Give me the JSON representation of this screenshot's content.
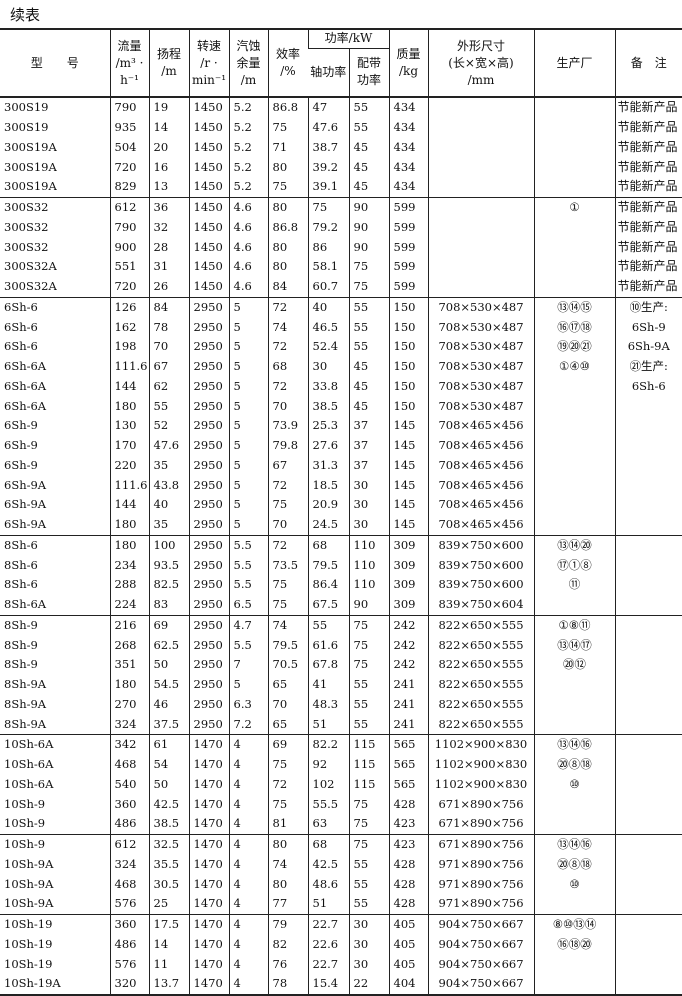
{
  "title": "续表",
  "header": {
    "model": "型　　号",
    "flow": [
      "流量",
      "/m³ ·",
      "h⁻¹"
    ],
    "head": [
      "扬程",
      "/m"
    ],
    "speed": [
      "转速",
      "/r ·",
      "min⁻¹"
    ],
    "npsh": [
      "汽蚀",
      "余量",
      "/m"
    ],
    "eff": [
      "效率",
      "/%"
    ],
    "power": "功率/kW",
    "shaft": "轴功率",
    "motor": [
      "配带",
      "功率"
    ],
    "mass": [
      "质量",
      "/kg"
    ],
    "dims": [
      "外形尺寸",
      "(长×宽×高)",
      "/mm"
    ],
    "factory": "生产厂",
    "remark": "备　注"
  },
  "rows": [
    [
      "300S19",
      "790",
      "19",
      "1450",
      "5.2",
      "86.8",
      "47",
      "55",
      "434",
      "",
      "",
      "节能新产品"
    ],
    [
      "300S19",
      "935",
      "14",
      "1450",
      "5.2",
      "75",
      "47.6",
      "55",
      "434",
      "",
      "",
      "节能新产品"
    ],
    [
      "300S19A",
      "504",
      "20",
      "1450",
      "5.2",
      "71",
      "38.7",
      "45",
      "434",
      "",
      "",
      "节能新产品"
    ],
    [
      "300S19A",
      "720",
      "16",
      "1450",
      "5.2",
      "80",
      "39.2",
      "45",
      "434",
      "",
      "",
      "节能新产品"
    ],
    [
      "300S19A",
      "829",
      "13",
      "1450",
      "5.2",
      "75",
      "39.1",
      "45",
      "434",
      "",
      "",
      "节能新产品"
    ],
    [
      "300S32",
      "612",
      "36",
      "1450",
      "4.6",
      "80",
      "75",
      "90",
      "599",
      "",
      "①",
      "节能新产品"
    ],
    [
      "300S32",
      "790",
      "32",
      "1450",
      "4.6",
      "86.8",
      "79.2",
      "90",
      "599",
      "",
      "",
      "节能新产品"
    ],
    [
      "300S32",
      "900",
      "28",
      "1450",
      "4.6",
      "80",
      "86",
      "90",
      "599",
      "",
      "",
      "节能新产品"
    ],
    [
      "300S32A",
      "551",
      "31",
      "1450",
      "4.6",
      "80",
      "58.1",
      "75",
      "599",
      "",
      "",
      "节能新产品"
    ],
    [
      "300S32A",
      "720",
      "26",
      "1450",
      "4.6",
      "84",
      "60.7",
      "75",
      "599",
      "",
      "",
      "节能新产品"
    ],
    [
      "6Sh-6",
      "126",
      "84",
      "2950",
      "5",
      "72",
      "40",
      "55",
      "150",
      "708×530×487",
      "⑬⑭⑮",
      "⑩生产:"
    ],
    [
      "6Sh-6",
      "162",
      "78",
      "2950",
      "5",
      "74",
      "46.5",
      "55",
      "150",
      "708×530×487",
      "⑯⑰⑱",
      "6Sh-9"
    ],
    [
      "6Sh-6",
      "198",
      "70",
      "2950",
      "5",
      "72",
      "52.4",
      "55",
      "150",
      "708×530×487",
      "⑲⑳㉑",
      "6Sh-9A"
    ],
    [
      "6Sh-6A",
      "111.6",
      "67",
      "2950",
      "5",
      "68",
      "30",
      "45",
      "150",
      "708×530×487",
      "①④⑩",
      "㉑生产:"
    ],
    [
      "6Sh-6A",
      "144",
      "62",
      "2950",
      "5",
      "72",
      "33.8",
      "45",
      "150",
      "708×530×487",
      "",
      "6Sh-6"
    ],
    [
      "6Sh-6A",
      "180",
      "55",
      "2950",
      "5",
      "70",
      "38.5",
      "45",
      "150",
      "708×530×487",
      "",
      ""
    ],
    [
      "6Sh-9",
      "130",
      "52",
      "2950",
      "5",
      "73.9",
      "25.3",
      "37",
      "145",
      "708×465×456",
      "",
      ""
    ],
    [
      "6Sh-9",
      "170",
      "47.6",
      "2950",
      "5",
      "79.8",
      "27.6",
      "37",
      "145",
      "708×465×456",
      "",
      ""
    ],
    [
      "6Sh-9",
      "220",
      "35",
      "2950",
      "5",
      "67",
      "31.3",
      "37",
      "145",
      "708×465×456",
      "",
      ""
    ],
    [
      "6Sh-9A",
      "111.6",
      "43.8",
      "2950",
      "5",
      "72",
      "18.5",
      "30",
      "145",
      "708×465×456",
      "",
      ""
    ],
    [
      "6Sh-9A",
      "144",
      "40",
      "2950",
      "5",
      "75",
      "20.9",
      "30",
      "145",
      "708×465×456",
      "",
      ""
    ],
    [
      "6Sh-9A",
      "180",
      "35",
      "2950",
      "5",
      "70",
      "24.5",
      "30",
      "145",
      "708×465×456",
      "",
      ""
    ],
    [
      "8Sh-6",
      "180",
      "100",
      "2950",
      "5.5",
      "72",
      "68",
      "110",
      "309",
      "839×750×600",
      "⑬⑭⑳",
      ""
    ],
    [
      "8Sh-6",
      "234",
      "93.5",
      "2950",
      "5.5",
      "73.5",
      "79.5",
      "110",
      "309",
      "839×750×600",
      "⑰①⑧",
      ""
    ],
    [
      "8Sh-6",
      "288",
      "82.5",
      "2950",
      "5.5",
      "75",
      "86.4",
      "110",
      "309",
      "839×750×600",
      "⑪",
      ""
    ],
    [
      "8Sh-6A",
      "224",
      "83",
      "2950",
      "6.5",
      "75",
      "67.5",
      "90",
      "309",
      "839×750×604",
      "",
      ""
    ],
    [
      "8Sh-9",
      "216",
      "69",
      "2950",
      "4.7",
      "74",
      "55",
      "75",
      "242",
      "822×650×555",
      "①⑧⑪",
      ""
    ],
    [
      "8Sh-9",
      "268",
      "62.5",
      "2950",
      "5.5",
      "79.5",
      "61.6",
      "75",
      "242",
      "822×650×555",
      "⑬⑭⑰",
      ""
    ],
    [
      "8Sh-9",
      "351",
      "50",
      "2950",
      "7",
      "70.5",
      "67.8",
      "75",
      "242",
      "822×650×555",
      "⑳⑫",
      ""
    ],
    [
      "8Sh-9A",
      "180",
      "54.5",
      "2950",
      "5",
      "65",
      "41",
      "55",
      "241",
      "822×650×555",
      "",
      ""
    ],
    [
      "8Sh-9A",
      "270",
      "46",
      "2950",
      "6.3",
      "70",
      "48.3",
      "55",
      "241",
      "822×650×555",
      "",
      ""
    ],
    [
      "8Sh-9A",
      "324",
      "37.5",
      "2950",
      "7.2",
      "65",
      "51",
      "55",
      "241",
      "822×650×555",
      "",
      ""
    ],
    [
      "10Sh-6A",
      "342",
      "61",
      "1470",
      "4",
      "69",
      "82.2",
      "115",
      "565",
      "1102×900×830",
      "⑬⑭⑯",
      ""
    ],
    [
      "10Sh-6A",
      "468",
      "54",
      "1470",
      "4",
      "75",
      "92",
      "115",
      "565",
      "1102×900×830",
      "⑳⑧⑱",
      ""
    ],
    [
      "10Sh-6A",
      "540",
      "50",
      "1470",
      "4",
      "72",
      "102",
      "115",
      "565",
      "1102×900×830",
      "⑩",
      ""
    ],
    [
      "10Sh-9",
      "360",
      "42.5",
      "1470",
      "4",
      "75",
      "55.5",
      "75",
      "428",
      "671×890×756",
      "",
      ""
    ],
    [
      "10Sh-9",
      "486",
      "38.5",
      "1470",
      "4",
      "81",
      "63",
      "75",
      "423",
      "671×890×756",
      "",
      ""
    ],
    [
      "10Sh-9",
      "612",
      "32.5",
      "1470",
      "4",
      "80",
      "68",
      "75",
      "423",
      "671×890×756",
      "⑬⑭⑯",
      ""
    ],
    [
      "10Sh-9A",
      "324",
      "35.5",
      "1470",
      "4",
      "74",
      "42.5",
      "55",
      "428",
      "971×890×756",
      "⑳⑧⑱",
      ""
    ],
    [
      "10Sh-9A",
      "468",
      "30.5",
      "1470",
      "4",
      "80",
      "48.6",
      "55",
      "428",
      "971×890×756",
      "⑩",
      ""
    ],
    [
      "10Sh-9A",
      "576",
      "25",
      "1470",
      "4",
      "77",
      "51",
      "55",
      "428",
      "971×890×756",
      "",
      ""
    ],
    [
      "10Sh-19",
      "360",
      "17.5",
      "1470",
      "4",
      "79",
      "22.7",
      "30",
      "405",
      "904×750×667",
      "⑧⑩⑬⑭",
      ""
    ],
    [
      "10Sh-19",
      "486",
      "14",
      "1470",
      "4",
      "82",
      "22.6",
      "30",
      "405",
      "904×750×667",
      "⑯⑱⑳",
      ""
    ],
    [
      "10Sh-19",
      "576",
      "11",
      "1470",
      "4",
      "76",
      "22.7",
      "30",
      "405",
      "904×750×667",
      "",
      ""
    ],
    [
      "10Sh-19A",
      "320",
      "13.7",
      "1470",
      "4",
      "78",
      "15.4",
      "22",
      "404",
      "904×750×667",
      "",
      ""
    ]
  ],
  "group_ends": [
    4,
    9,
    21,
    25,
    31,
    36,
    40,
    44
  ]
}
